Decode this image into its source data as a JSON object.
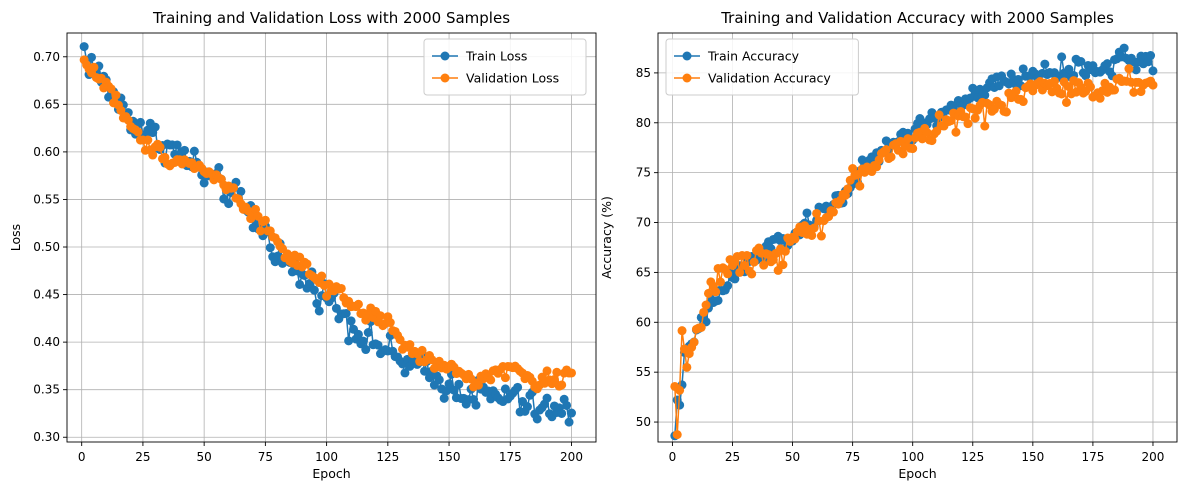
{
  "chart_data": [
    {
      "type": "line",
      "title": "Training and Validation Loss with 2000 Samples",
      "xlabel": "Epoch",
      "ylabel": "Loss",
      "xlim": [
        -6,
        210
      ],
      "ylim": [
        0.295,
        0.725
      ],
      "xticks": [
        0,
        25,
        50,
        75,
        100,
        125,
        150,
        175,
        200
      ],
      "yticks": [
        0.3,
        0.35,
        0.4,
        0.45,
        0.5,
        0.55,
        0.6,
        0.65,
        0.7
      ],
      "ytick_labels": [
        "0.30",
        "0.35",
        "0.40",
        "0.45",
        "0.50",
        "0.55",
        "0.60",
        "0.65",
        "0.70"
      ],
      "grid": true,
      "legend_position": "top-right",
      "series": [
        {
          "name": "Train Loss",
          "color": "#1f77b4",
          "keypoints": [
            [
              1,
              0.708
            ],
            [
              2,
              0.697
            ],
            [
              4,
              0.692
            ],
            [
              8,
              0.677
            ],
            [
              12,
              0.662
            ],
            [
              16,
              0.648
            ],
            [
              20,
              0.635
            ],
            [
              25,
              0.625
            ],
            [
              30,
              0.615
            ],
            [
              35,
              0.605
            ],
            [
              40,
              0.598
            ],
            [
              45,
              0.59
            ],
            [
              50,
              0.575
            ],
            [
              55,
              0.567
            ],
            [
              60,
              0.56
            ],
            [
              65,
              0.545
            ],
            [
              70,
              0.53
            ],
            [
              75,
              0.515
            ],
            [
              80,
              0.495
            ],
            [
              85,
              0.48
            ],
            [
              90,
              0.468
            ],
            [
              95,
              0.458
            ],
            [
              100,
              0.448
            ],
            [
              105,
              0.435
            ],
            [
              110,
              0.42
            ],
            [
              115,
              0.405
            ],
            [
              120,
              0.4
            ],
            [
              125,
              0.39
            ],
            [
              130,
              0.38
            ],
            [
              135,
              0.375
            ],
            [
              140,
              0.37
            ],
            [
              145,
              0.36
            ],
            [
              150,
              0.355
            ],
            [
              155,
              0.35
            ],
            [
              160,
              0.345
            ],
            [
              165,
              0.345
            ],
            [
              170,
              0.34
            ],
            [
              175,
              0.345
            ],
            [
              180,
              0.335
            ],
            [
              185,
              0.33
            ],
            [
              190,
              0.33
            ],
            [
              195,
              0.325
            ],
            [
              200,
              0.33
            ]
          ],
          "noise": 0.008
        },
        {
          "name": "Validation Loss",
          "color": "#ff7f0e",
          "keypoints": [
            [
              1,
              0.695
            ],
            [
              2,
              0.692
            ],
            [
              5,
              0.684
            ],
            [
              10,
              0.67
            ],
            [
              15,
              0.65
            ],
            [
              20,
              0.625
            ],
            [
              25,
              0.61
            ],
            [
              30,
              0.603
            ],
            [
              35,
              0.595
            ],
            [
              40,
              0.59
            ],
            [
              45,
              0.589
            ],
            [
              50,
              0.58
            ],
            [
              55,
              0.573
            ],
            [
              60,
              0.563
            ],
            [
              65,
              0.548
            ],
            [
              70,
              0.535
            ],
            [
              75,
              0.522
            ],
            [
              80,
              0.505
            ],
            [
              85,
              0.49
            ],
            [
              90,
              0.48
            ],
            [
              95,
              0.468
            ],
            [
              100,
              0.455
            ],
            [
              105,
              0.45
            ],
            [
              110,
              0.44
            ],
            [
              115,
              0.43
            ],
            [
              120,
              0.428
            ],
            [
              125,
              0.42
            ],
            [
              130,
              0.4
            ],
            [
              135,
              0.39
            ],
            [
              140,
              0.382
            ],
            [
              145,
              0.378
            ],
            [
              150,
              0.37
            ],
            [
              155,
              0.368
            ],
            [
              160,
              0.36
            ],
            [
              165,
              0.362
            ],
            [
              170,
              0.37
            ],
            [
              175,
              0.375
            ],
            [
              180,
              0.365
            ],
            [
              185,
              0.358
            ],
            [
              190,
              0.36
            ],
            [
              195,
              0.362
            ],
            [
              200,
              0.373
            ]
          ],
          "noise": 0.004
        }
      ]
    },
    {
      "type": "line",
      "title": "Training and Validation Accuracy with 2000 Samples",
      "xlabel": "Epoch",
      "ylabel": "Accuracy (%)",
      "xlim": [
        -6,
        210
      ],
      "ylim": [
        48,
        89
      ],
      "xticks": [
        0,
        25,
        50,
        75,
        100,
        125,
        150,
        175,
        200
      ],
      "yticks": [
        50,
        55,
        60,
        65,
        70,
        75,
        80,
        85
      ],
      "ytick_labels": [
        "50",
        "55",
        "60",
        "65",
        "70",
        "75",
        "80",
        "85"
      ],
      "grid": true,
      "legend_position": "top-left",
      "series": [
        {
          "name": "Train Accuracy",
          "color": "#1f77b4",
          "keypoints": [
            [
              1,
              49.2
            ],
            [
              2,
              51.5
            ],
            [
              3,
              52.5
            ],
            [
              5,
              56
            ],
            [
              8,
              57.5
            ],
            [
              10,
              59
            ],
            [
              15,
              61
            ],
            [
              20,
              63
            ],
            [
              25,
              64.5
            ],
            [
              30,
              65.5
            ],
            [
              35,
              66.5
            ],
            [
              40,
              67.5
            ],
            [
              45,
              68
            ],
            [
              50,
              68.5
            ],
            [
              55,
              69.5
            ],
            [
              60,
              70.5
            ],
            [
              65,
              71.5
            ],
            [
              70,
              72.5
            ],
            [
              75,
              74
            ],
            [
              80,
              75.5
            ],
            [
              85,
              76.5
            ],
            [
              90,
              77.5
            ],
            [
              95,
              78.5
            ],
            [
              100,
              79
            ],
            [
              105,
              80
            ],
            [
              110,
              80.5
            ],
            [
              115,
              81.5
            ],
            [
              120,
              82
            ],
            [
              125,
              82.5
            ],
            [
              130,
              83.2
            ],
            [
              135,
              83.8
            ],
            [
              140,
              84.2
            ],
            [
              145,
              84.5
            ],
            [
              150,
              84.8
            ],
            [
              155,
              85
            ],
            [
              160,
              85.2
            ],
            [
              165,
              85.3
            ],
            [
              170,
              85.4
            ],
            [
              175,
              85.5
            ],
            [
              180,
              85.5
            ],
            [
              185,
              85.8
            ],
            [
              188,
              88
            ],
            [
              190,
              86
            ],
            [
              195,
              86
            ],
            [
              200,
              86
            ]
          ],
          "noise": 0.5
        },
        {
          "name": "Validation Accuracy",
          "color": "#ff7f0e",
          "keypoints": [
            [
              1,
              53
            ],
            [
              2,
              50.3
            ],
            [
              3,
              53.5
            ],
            [
              4,
              58.5
            ],
            [
              6,
              56.5
            ],
            [
              10,
              59
            ],
            [
              15,
              62
            ],
            [
              20,
              65
            ],
            [
              25,
              66
            ],
            [
              30,
              65.5
            ],
            [
              35,
              66.5
            ],
            [
              40,
              67
            ],
            [
              45,
              66.8
            ],
            [
              50,
              68.5
            ],
            [
              55,
              69.5
            ],
            [
              60,
              70
            ],
            [
              65,
              70.5
            ],
            [
              70,
              72.5
            ],
            [
              75,
              74
            ],
            [
              80,
              75.5
            ],
            [
              85,
              76
            ],
            [
              90,
              77
            ],
            [
              95,
              77.5
            ],
            [
              100,
              78
            ],
            [
              105,
              79
            ],
            [
              110,
              79.5
            ],
            [
              115,
              80
            ],
            [
              120,
              80.5
            ],
            [
              125,
              80.5
            ],
            [
              130,
              81
            ],
            [
              135,
              82
            ],
            [
              140,
              82.5
            ],
            [
              145,
              83
            ],
            [
              150,
              83.5
            ],
            [
              155,
              83.5
            ],
            [
              160,
              83.5
            ],
            [
              165,
              83
            ],
            [
              170,
              83.2
            ],
            [
              175,
              83.5
            ],
            [
              180,
              83.5
            ],
            [
              185,
              84
            ],
            [
              190,
              84.5
            ],
            [
              195,
              84
            ],
            [
              200,
              84
            ]
          ],
          "noise": 0.6
        }
      ]
    }
  ]
}
